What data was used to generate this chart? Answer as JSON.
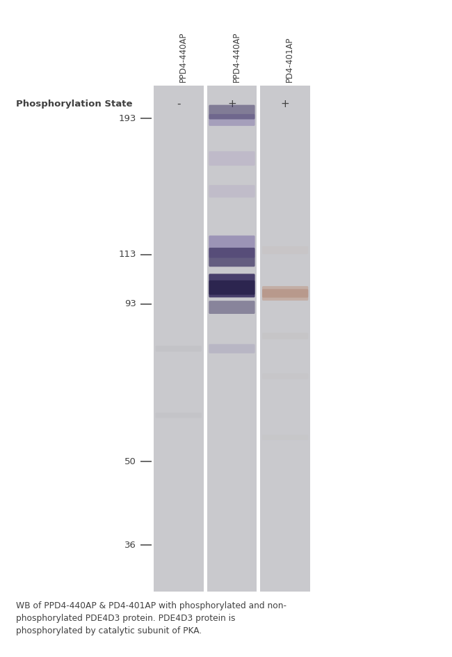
{
  "background_color": "#ffffff",
  "fig_width": 6.5,
  "fig_height": 9.44,
  "lane_labels": [
    "PPD4-440AP",
    "PPD4-440AP",
    "PD4-401AP"
  ],
  "phospho_labels": [
    "-",
    "+",
    "+"
  ],
  "phospho_state_label": "Phosphorylation State",
  "mw_markers": [
    193,
    113,
    93,
    50,
    36
  ],
  "lane_bg_color": "#c9c9cd",
  "band_color_dark": "#3a3060",
  "band_color_mid": "#7060a0",
  "band_color_light": "#a898c0",
  "band_color_brown": "#c0a090",
  "caption": "WB of PPD4-440AP & PD4-401AP with phosphorylated and non-\nphosphorylated PDE4D3 protein. PDE4D3 protein is\nphosphorylated by catalytic subunit of PKA."
}
